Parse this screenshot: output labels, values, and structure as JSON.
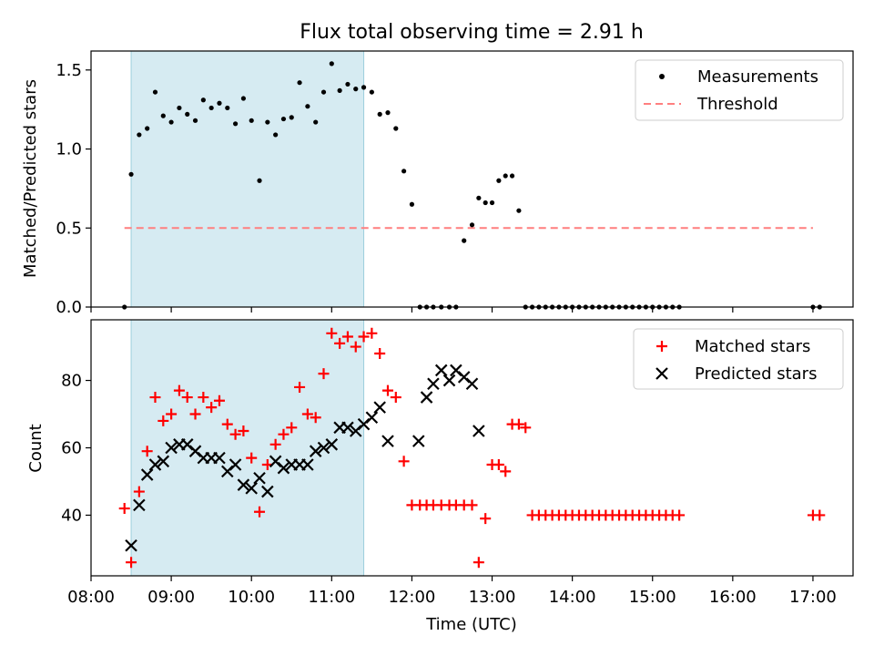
{
  "chart_data": [
    {
      "type": "scatter",
      "title": "Flux total observing time = 2.91 h",
      "xlabel": "",
      "ylabel": "Matched/Predicted stars",
      "xlim": [
        "08:00",
        "17:30"
      ],
      "ylim": [
        0,
        1.62
      ],
      "y_ticks": [
        0.0,
        0.5,
        1.0,
        1.5
      ],
      "y_tick_labels": [
        "0.0",
        "0.5",
        "1.0",
        "1.5"
      ],
      "shaded_span": [
        "08:30",
        "11:24"
      ],
      "shaded_color": "#add8e6",
      "legend_position": "top-right",
      "grid": false,
      "series": [
        {
          "name": "Measurements",
          "marker": "dot",
          "color": "#000000",
          "x": [
            "08:25",
            "08:30",
            "08:36",
            "08:42",
            "08:48",
            "08:54",
            "09:00",
            "09:06",
            "09:12",
            "09:18",
            "09:24",
            "09:30",
            "09:36",
            "09:42",
            "09:48",
            "09:54",
            "10:00",
            "10:06",
            "10:12",
            "10:18",
            "10:24",
            "10:30",
            "10:36",
            "10:42",
            "10:48",
            "10:54",
            "11:00",
            "11:06",
            "11:12",
            "11:18",
            "11:24",
            "11:30",
            "11:36",
            "11:42",
            "11:48",
            "11:54",
            "12:00",
            "12:06",
            "12:11",
            "12:16",
            "12:22",
            "12:28",
            "12:33",
            "12:39",
            "12:45",
            "12:50",
            "12:55",
            "13:00",
            "13:05",
            "13:10",
            "13:15",
            "13:20",
            "13:25",
            "13:30",
            "13:35",
            "13:40",
            "13:45",
            "13:50",
            "13:55",
            "14:00",
            "14:05",
            "14:10",
            "14:15",
            "14:20",
            "14:25",
            "14:30",
            "14:35",
            "14:40",
            "14:45",
            "14:50",
            "14:55",
            "15:00",
            "15:05",
            "15:10",
            "15:15",
            "15:20",
            "17:00",
            "17:05"
          ],
          "y": [
            0.0,
            0.84,
            1.09,
            1.13,
            1.36,
            1.21,
            1.17,
            1.26,
            1.22,
            1.18,
            1.31,
            1.26,
            1.29,
            1.26,
            1.16,
            1.32,
            1.18,
            0.8,
            1.17,
            1.09,
            1.19,
            1.2,
            1.42,
            1.27,
            1.17,
            1.36,
            1.54,
            1.37,
            1.41,
            1.38,
            1.39,
            1.36,
            1.22,
            1.23,
            1.13,
            0.86,
            0.65,
            0.0,
            0.0,
            0.0,
            0.0,
            0.0,
            0.0,
            0.42,
            0.52,
            0.69,
            0.66,
            0.66,
            0.8,
            0.83,
            0.83,
            0.61,
            0.0,
            0.0,
            0.0,
            0.0,
            0.0,
            0.0,
            0.0,
            0.0,
            0.0,
            0.0,
            0.0,
            0.0,
            0.0,
            0.0,
            0.0,
            0.0,
            0.0,
            0.0,
            0.0,
            0.0,
            0.0,
            0.0,
            0.0,
            0.0,
            0.0,
            0.0
          ]
        },
        {
          "name": "Threshold",
          "marker": "dashed-line",
          "color": "#ff7f7f",
          "x": [
            "08:25",
            "17:00"
          ],
          "y": [
            0.5,
            0.5
          ]
        }
      ]
    },
    {
      "type": "scatter",
      "title": "",
      "xlabel": "Time (UTC)",
      "ylabel": "Count",
      "xlim": [
        "08:00",
        "17:30"
      ],
      "ylim": [
        22,
        98
      ],
      "y_ticks": [
        40,
        60,
        80
      ],
      "y_tick_labels": [
        "40",
        "60",
        "80"
      ],
      "x_ticks": [
        "08:00",
        "09:00",
        "10:00",
        "11:00",
        "12:00",
        "13:00",
        "14:00",
        "15:00",
        "16:00",
        "17:00"
      ],
      "x_tick_labels": [
        "08:00",
        "09:00",
        "10:00",
        "11:00",
        "12:00",
        "13:00",
        "14:00",
        "15:00",
        "16:00",
        "17:00"
      ],
      "shaded_span": [
        "08:30",
        "11:24"
      ],
      "shaded_color": "#add8e6",
      "legend_position": "top-right",
      "grid": false,
      "series": [
        {
          "name": "Matched stars",
          "marker": "plus",
          "color": "#ff0000",
          "x": [
            "08:25",
            "08:30",
            "08:36",
            "08:42",
            "08:48",
            "08:54",
            "09:00",
            "09:06",
            "09:12",
            "09:18",
            "09:24",
            "09:30",
            "09:36",
            "09:42",
            "09:48",
            "09:54",
            "10:00",
            "10:06",
            "10:12",
            "10:18",
            "10:24",
            "10:30",
            "10:36",
            "10:42",
            "10:48",
            "10:54",
            "11:00",
            "11:06",
            "11:12",
            "11:18",
            "11:24",
            "11:30",
            "11:36",
            "11:42",
            "11:48",
            "11:54",
            "12:00",
            "12:06",
            "12:11",
            "12:16",
            "12:22",
            "12:28",
            "12:33",
            "12:39",
            "12:45",
            "12:50",
            "12:55",
            "13:00",
            "13:05",
            "13:10",
            "13:15",
            "13:20",
            "13:25",
            "13:30",
            "13:35",
            "13:40",
            "13:45",
            "13:50",
            "13:55",
            "14:00",
            "14:05",
            "14:10",
            "14:15",
            "14:20",
            "14:25",
            "14:30",
            "14:35",
            "14:40",
            "14:45",
            "14:50",
            "14:55",
            "15:00",
            "15:05",
            "15:10",
            "15:15",
            "15:20",
            "17:00",
            "17:05"
          ],
          "y": [
            42,
            26,
            47,
            59,
            75,
            68,
            70,
            77,
            75,
            70,
            75,
            72,
            74,
            67,
            64,
            65,
            57,
            41,
            55,
            61,
            64,
            66,
            78,
            70,
            69,
            82,
            94,
            91,
            93,
            90,
            93,
            94,
            88,
            77,
            75,
            56,
            43,
            43,
            43,
            43,
            43,
            43,
            43,
            43,
            43,
            26,
            39,
            55,
            55,
            53,
            67,
            67,
            66,
            40,
            40,
            40,
            40,
            40,
            40,
            40,
            40,
            40,
            40,
            40,
            40,
            40,
            40,
            40,
            40,
            40,
            40,
            40,
            40,
            40,
            40,
            40,
            40,
            40
          ]
        },
        {
          "name": "Predicted stars",
          "marker": "x",
          "color": "#000000",
          "x": [
            "08:30",
            "08:36",
            "08:42",
            "08:48",
            "08:54",
            "09:00",
            "09:06",
            "09:12",
            "09:18",
            "09:24",
            "09:30",
            "09:36",
            "09:42",
            "09:48",
            "09:54",
            "10:00",
            "10:06",
            "10:12",
            "10:18",
            "10:24",
            "10:30",
            "10:36",
            "10:42",
            "10:48",
            "10:54",
            "11:00",
            "11:06",
            "11:12",
            "11:18",
            "11:24",
            "11:30",
            "11:36",
            "11:42",
            "12:05",
            "12:11",
            "12:16",
            "12:22",
            "12:28",
            "12:33",
            "12:39",
            "12:45",
            "12:50"
          ],
          "y": [
            31,
            43,
            52,
            55,
            56,
            60,
            61,
            61,
            59,
            57,
            57,
            57,
            53,
            55,
            49,
            48,
            51,
            47,
            56,
            54,
            55,
            55,
            55,
            59,
            60,
            61,
            66,
            66,
            65,
            67,
            69,
            72,
            62,
            62,
            75,
            79,
            83,
            80,
            83,
            81,
            79,
            65
          ]
        }
      ]
    }
  ]
}
